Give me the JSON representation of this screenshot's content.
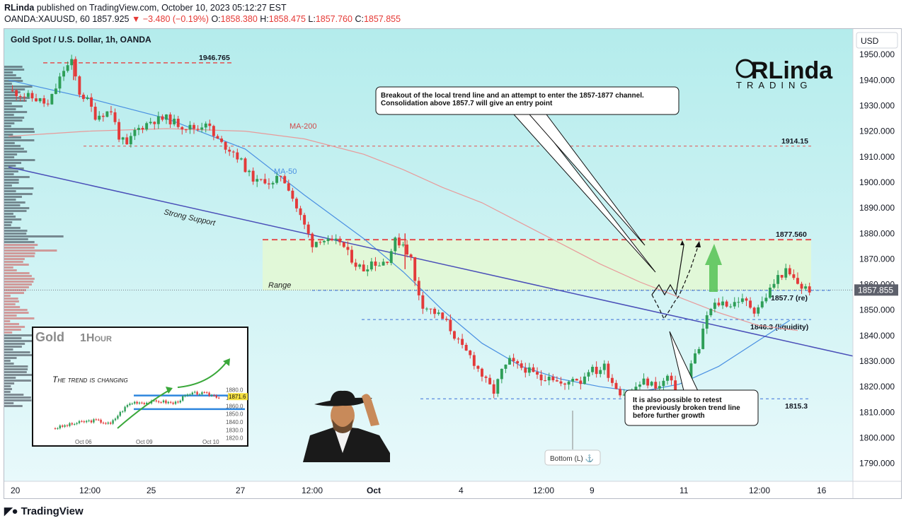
{
  "header": {
    "author": "RLinda",
    "published_text": "published on TradingView.com, October 10, 2023 05:12:27 EST",
    "symbol": "OANDA:XAUUSD, 60",
    "last": "1857.925",
    "change": "▼ −3.480 (−0.19%)",
    "ohlc": [
      {
        "k": "O:",
        "v": "1858.380"
      },
      {
        "k": "H:",
        "v": "1858.475"
      },
      {
        "k": "L:",
        "v": "1857.760"
      },
      {
        "k": "C:",
        "v": "1857.855"
      }
    ]
  },
  "chart_title": "Gold Spot / U.S. Dollar, 1h, OANDA",
  "currency_button": "USD",
  "footer_logo": "TradingView",
  "colors": {
    "background_top": "#b4ecec",
    "background_bottom": "#e8f9fb",
    "candle_up": "#2e9e57",
    "candle_down": "#e33a3a",
    "ma50": "#4a90e2",
    "ma200": "#e89a9a",
    "trendline": "#4a4fb8",
    "level_red": "#e35050",
    "level_blue": "#3a6ed8",
    "zone": "#e4f8d2",
    "arrow_green": "#5cc45c"
  },
  "chart_data": {
    "type": "candlestick",
    "symbol": "XAUUSD",
    "timeframe": "1h",
    "y_axis": {
      "range": [
        1783,
        1960
      ],
      "ticks": [
        "1950.000",
        "1940.000",
        "1930.000",
        "1920.000",
        "1910.000",
        "1900.000",
        "1890.000",
        "1880.000",
        "1870.000",
        "1860.000",
        "1850.000",
        "1840.000",
        "1830.000",
        "1820.000",
        "1810.000",
        "1800.000",
        "1790.000"
      ]
    },
    "x_axis": {
      "ticks": [
        "20",
        "12:00",
        "25",
        "27",
        "12:00",
        "Oct",
        "4",
        "12:00",
        "9",
        "11",
        "12:00",
        "16"
      ]
    },
    "last_price_label": "1857.855",
    "price_path": [
      [
        0,
        1936
      ],
      [
        4,
        1934
      ],
      [
        8,
        1932
      ],
      [
        10,
        1930
      ],
      [
        12,
        1937
      ],
      [
        14,
        1944
      ],
      [
        16,
        1947
      ],
      [
        18,
        1935
      ],
      [
        20,
        1932
      ],
      [
        22,
        1926
      ],
      [
        26,
        1928
      ],
      [
        28,
        1918
      ],
      [
        30,
        1914
      ],
      [
        32,
        1920
      ],
      [
        36,
        1924
      ],
      [
        40,
        1925
      ],
      [
        44,
        1922
      ],
      [
        48,
        1921
      ],
      [
        50,
        1924
      ],
      [
        52,
        1918
      ],
      [
        54,
        1915
      ],
      [
        57,
        1912
      ],
      [
        59,
        1908
      ],
      [
        61,
        1903
      ],
      [
        63,
        1900
      ],
      [
        65,
        1901
      ],
      [
        67,
        1899
      ],
      [
        69,
        1903
      ],
      [
        71,
        1898
      ],
      [
        73,
        1890
      ],
      [
        75,
        1883
      ],
      [
        77,
        1876
      ],
      [
        79,
        1878
      ],
      [
        82,
        1876
      ],
      [
        84,
        1877
      ],
      [
        86,
        1872
      ],
      [
        88,
        1868
      ],
      [
        90,
        1866
      ],
      [
        92,
        1869
      ],
      [
        94,
        1868
      ],
      [
        96,
        1870
      ],
      [
        98,
        1877
      ],
      [
        100,
        1876
      ],
      [
        102,
        1870
      ],
      [
        103,
        1861
      ],
      [
        105,
        1852
      ],
      [
        107,
        1850
      ],
      [
        109,
        1848
      ],
      [
        111,
        1845
      ],
      [
        113,
        1840
      ],
      [
        115,
        1835
      ],
      [
        117,
        1832
      ],
      [
        119,
        1827
      ],
      [
        121,
        1822
      ],
      [
        123,
        1818
      ],
      [
        125,
        1826
      ],
      [
        127,
        1830
      ],
      [
        129,
        1828
      ],
      [
        131,
        1827
      ],
      [
        133,
        1825
      ],
      [
        135,
        1823
      ],
      [
        137,
        1825
      ],
      [
        139,
        1822
      ],
      [
        141,
        1820
      ],
      [
        143,
        1824
      ],
      [
        145,
        1822
      ],
      [
        147,
        1827
      ],
      [
        149,
        1826
      ],
      [
        151,
        1828
      ],
      [
        153,
        1822
      ],
      [
        155,
        1818
      ],
      [
        157,
        1817
      ],
      [
        159,
        1820
      ],
      [
        161,
        1822
      ],
      [
        163,
        1821
      ],
      [
        165,
        1820
      ],
      [
        167,
        1824
      ],
      [
        169,
        1818
      ],
      [
        171,
        1815
      ],
      [
        173,
        1830
      ],
      [
        175,
        1835
      ],
      [
        177,
        1848
      ],
      [
        179,
        1852
      ],
      [
        181,
        1853
      ],
      [
        183,
        1852
      ],
      [
        185,
        1854
      ],
      [
        187,
        1853
      ],
      [
        189,
        1850
      ],
      [
        191,
        1853
      ],
      [
        193,
        1858
      ],
      [
        195,
        1863
      ],
      [
        197,
        1865
      ],
      [
        199,
        1862
      ],
      [
        201,
        1859
      ],
      [
        203,
        1858
      ]
    ],
    "moving_averages": [
      {
        "name": "MA-50",
        "values": [
          [
            0,
            1940
          ],
          [
            20,
            1933
          ],
          [
            40,
            1925
          ],
          [
            60,
            1913
          ],
          [
            75,
            1895
          ],
          [
            90,
            1878
          ],
          [
            100,
            1865
          ],
          [
            110,
            1850
          ],
          [
            120,
            1837
          ],
          [
            130,
            1828
          ],
          [
            140,
            1823
          ],
          [
            150,
            1820
          ],
          [
            160,
            1818
          ],
          [
            170,
            1821
          ],
          [
            180,
            1828
          ],
          [
            190,
            1838
          ],
          [
            198,
            1846
          ]
        ]
      },
      {
        "name": "MA-200",
        "values": [
          [
            0,
            1918
          ],
          [
            20,
            1920
          ],
          [
            40,
            1921
          ],
          [
            60,
            1920
          ],
          [
            75,
            1917
          ],
          [
            90,
            1911
          ],
          [
            100,
            1905
          ],
          [
            110,
            1898
          ],
          [
            120,
            1892
          ],
          [
            130,
            1884
          ],
          [
            140,
            1876
          ],
          [
            150,
            1868
          ],
          [
            160,
            1861
          ],
          [
            170,
            1855
          ],
          [
            180,
            1849
          ],
          [
            190,
            1844
          ],
          [
            200,
            1842
          ]
        ]
      }
    ],
    "trend_line": {
      "label": "Strong Support",
      "from": [
        0,
        1906
      ],
      "to": [
        214,
        1832
      ]
    },
    "levels": [
      {
        "label": "1946.765",
        "value": 1946.765
      },
      {
        "label": "1914.15",
        "value": 1914.15
      },
      {
        "label": "1877.560",
        "value": 1877.56
      },
      {
        "label": "1857.7 (re)",
        "value": 1857.7
      },
      {
        "label": "1846.3 (liquidity)",
        "value": 1846.3
      },
      {
        "label": "1815.3",
        "value": 1815.3
      }
    ],
    "zone": {
      "label": "Range",
      "from": 1857.7,
      "to": 1877.56
    },
    "annotations": {
      "callout_top": [
        "Breakout of the local trend line and an attempt to enter the 1857-1877 channel.",
        "Consolidation above 1857.7 will give an entry point"
      ],
      "callout_bottom": [
        "It is also possible to retest",
        "the previously broken trend line",
        "before further growth"
      ],
      "bottom_marker": "Bottom (L) ⚓",
      "ma200_label": "MA-200",
      "ma50_label": "MA-50"
    },
    "watermark": {
      "line1": "RLinda",
      "line2": "TRADING"
    },
    "inset": {
      "title": "Gold",
      "subtitle": "1Hour",
      "caption": "The trend is changing",
      "y_ticks": [
        "1880.0",
        "1870.0",
        "1860.0",
        "1850.0",
        "1840.0",
        "1830.0",
        "1820.0"
      ],
      "x_ticks": [
        "Oct 06",
        "Oct 09",
        "Oct 10"
      ],
      "price_tag": "1871.6"
    }
  }
}
